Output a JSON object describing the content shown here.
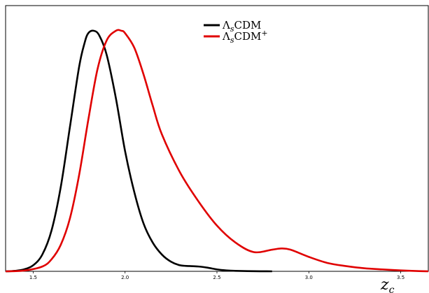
{
  "chart_data": {
    "type": "line",
    "title": "",
    "xlabel": "z",
    "xlabel_subscript": "c",
    "ylabel": "",
    "xlim": [
      1.35,
      3.65
    ],
    "ylim": [
      0,
      1.0
    ],
    "x_ticks": [
      1.5,
      2.0,
      2.5,
      3.0,
      3.5
    ],
    "x_tick_labels": [
      "1.5",
      "2.0",
      "2.5",
      "3.0",
      "3.5"
    ],
    "y_ticks_visible": false,
    "grid": false,
    "legend_position": "top-center",
    "series": [
      {
        "legend_main": "Λ",
        "legend_sub": "s",
        "legend_suffix": "CDM",
        "legend_sup": "",
        "color": "#000000",
        "x": [
          1.35,
          1.4,
          1.45,
          1.5,
          1.55,
          1.6,
          1.65,
          1.7,
          1.75,
          1.78,
          1.8,
          1.83,
          1.86,
          1.9,
          1.95,
          2.0,
          2.05,
          2.1,
          2.15,
          2.2,
          2.25,
          2.3,
          2.35,
          2.4,
          2.45,
          2.5,
          2.55,
          2.6,
          2.7,
          2.8
        ],
        "y": [
          0.0,
          0.002,
          0.008,
          0.025,
          0.07,
          0.17,
          0.35,
          0.6,
          0.85,
          0.95,
          0.99,
          1.0,
          0.98,
          0.9,
          0.72,
          0.5,
          0.33,
          0.2,
          0.12,
          0.07,
          0.04,
          0.025,
          0.022,
          0.02,
          0.015,
          0.008,
          0.004,
          0.002,
          0.0005,
          0.0
        ]
      },
      {
        "legend_main": "Λ",
        "legend_sub": "s",
        "legend_suffix": "CDM",
        "legend_sup": "+",
        "color": "#e00000",
        "x": [
          1.35,
          1.45,
          1.55,
          1.6,
          1.65,
          1.7,
          1.75,
          1.8,
          1.85,
          1.9,
          1.95,
          1.98,
          2.0,
          2.05,
          2.1,
          2.15,
          2.2,
          2.3,
          2.4,
          2.5,
          2.6,
          2.7,
          2.8,
          2.85,
          2.9,
          3.0,
          3.1,
          3.2,
          3.3,
          3.4,
          3.5,
          3.6,
          3.65
        ],
        "y": [
          0.0,
          0.003,
          0.02,
          0.05,
          0.11,
          0.22,
          0.4,
          0.63,
          0.84,
          0.96,
          1.0,
          1.0,
          0.99,
          0.93,
          0.82,
          0.69,
          0.57,
          0.41,
          0.29,
          0.19,
          0.12,
          0.08,
          0.09,
          0.095,
          0.09,
          0.06,
          0.035,
          0.022,
          0.013,
          0.008,
          0.004,
          0.001,
          0.0
        ]
      }
    ]
  }
}
